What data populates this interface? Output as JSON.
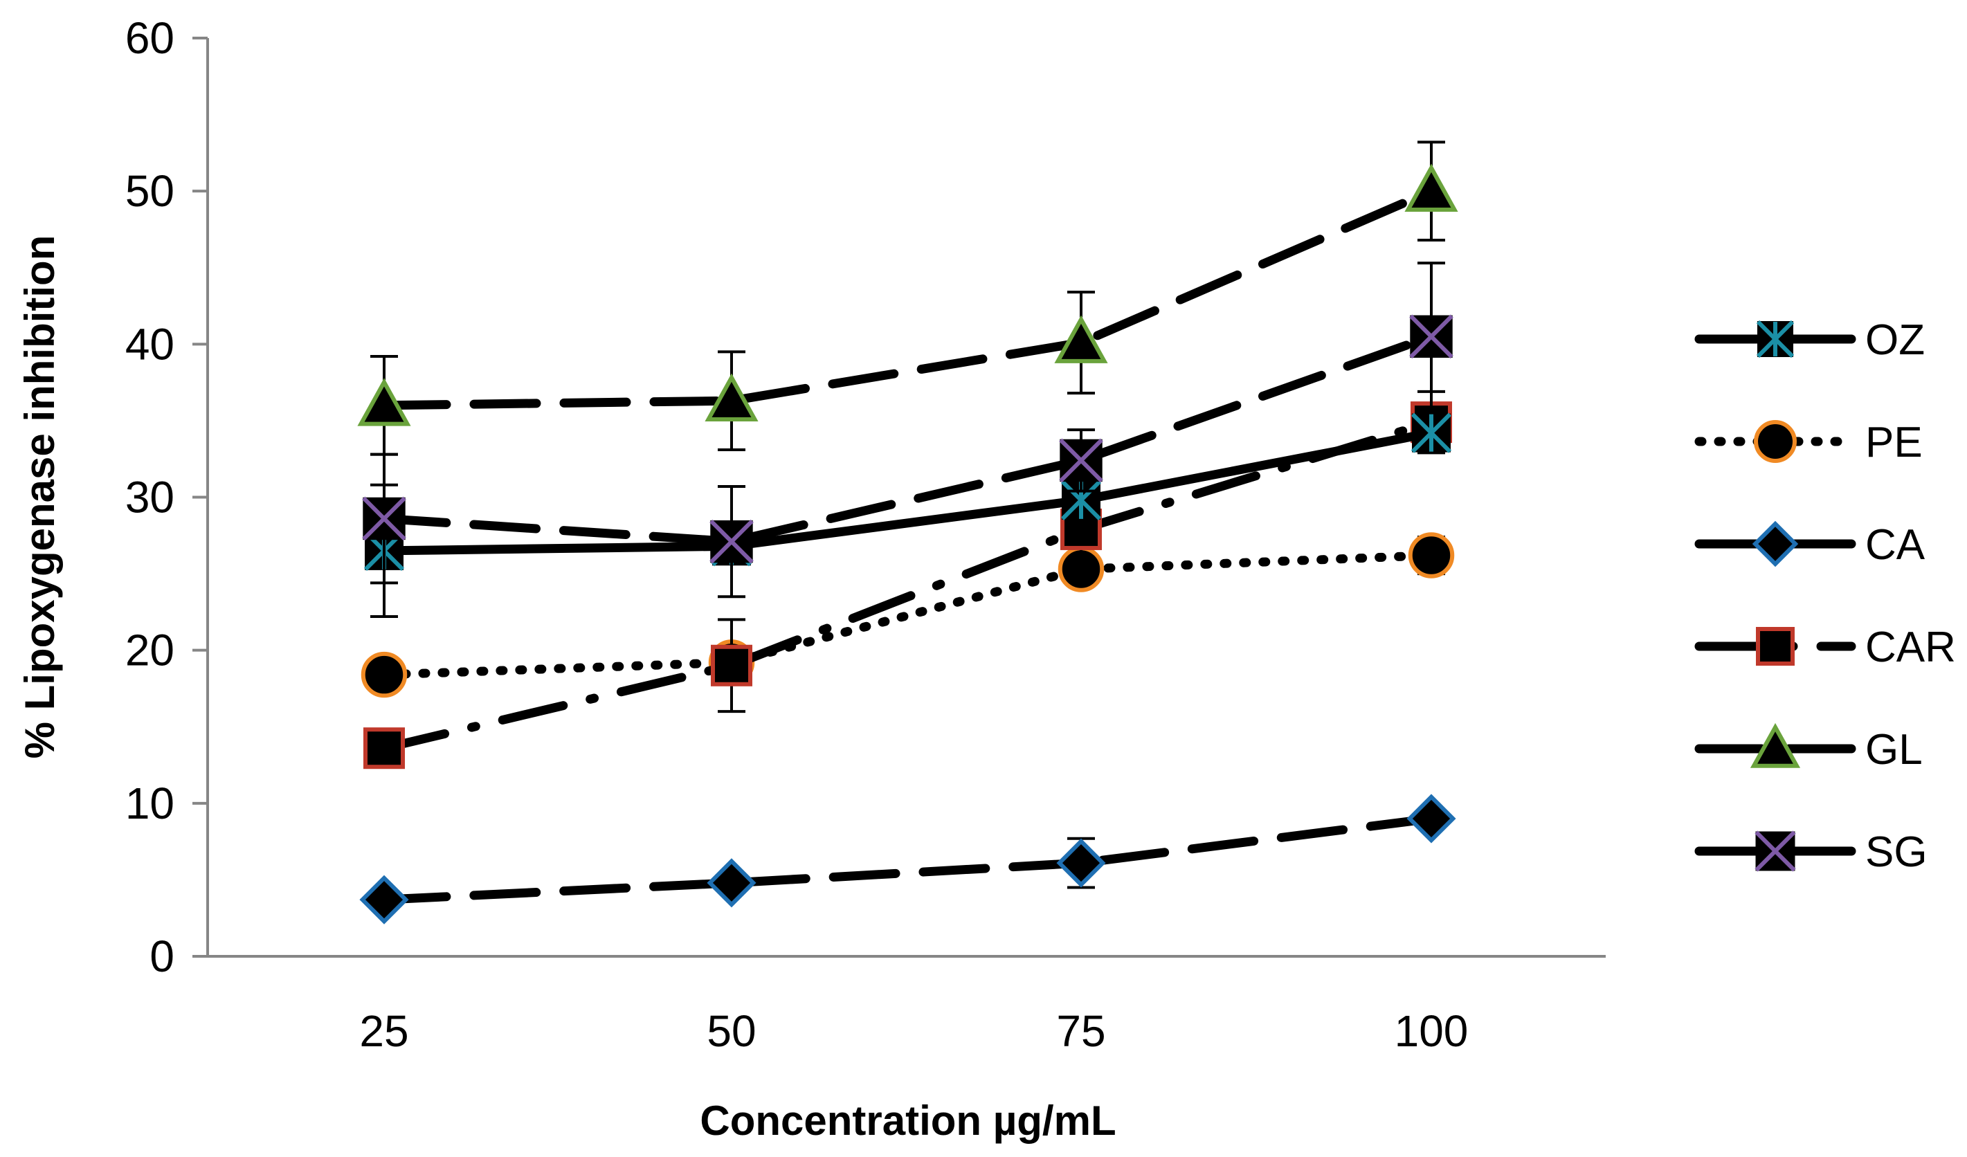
{
  "chart_data": {
    "type": "line",
    "title": "",
    "xlabel": "Concentration µg/mL",
    "ylabel": "% Lipoxygenase inhibition",
    "categories": [
      "25",
      "50",
      "75",
      "100"
    ],
    "ylim": [
      0,
      60
    ],
    "yticks": [
      0,
      10,
      20,
      30,
      40,
      50,
      60
    ],
    "grid": false,
    "legend_position": "right",
    "series": [
      {
        "name": "OZ",
        "values": [
          26.5,
          26.8,
          29.8,
          34.2
        ],
        "errors": [
          4.3,
          0,
          0,
          0.8
        ],
        "marker": "asterisk-square",
        "line": "solid",
        "marker_color": "#1b8fa6",
        "marker_fill": "#000000"
      },
      {
        "name": "PE",
        "values": [
          18.4,
          19.2,
          25.3,
          26.2
        ],
        "errors": [
          1.0,
          0,
          0,
          1.2
        ],
        "marker": "circle",
        "line": "dotted",
        "marker_color": "#f08a24",
        "marker_fill": "#000000"
      },
      {
        "name": "CA",
        "values": [
          3.7,
          4.8,
          6.1,
          9.0
        ],
        "errors": [
          0,
          0,
          1.6,
          0
        ],
        "marker": "diamond",
        "line": "dashed",
        "marker_color": "#1f6fb2",
        "marker_fill": "#000000"
      },
      {
        "name": "CAR",
        "values": [
          13.6,
          19.0,
          27.9,
          34.9
        ],
        "errors": [
          0,
          3.0,
          2.8,
          2.0
        ],
        "marker": "square",
        "line": "dash-dot",
        "marker_color": "#c0392b",
        "marker_fill": "#000000"
      },
      {
        "name": "GL",
        "values": [
          36.0,
          36.3,
          40.1,
          50.0
        ],
        "errors": [
          3.2,
          3.2,
          3.3,
          3.2
        ],
        "marker": "triangle",
        "line": "dashed",
        "marker_color": "#6aa33c",
        "marker_fill": "#000000"
      },
      {
        "name": "SG",
        "values": [
          28.6,
          27.1,
          32.4,
          40.5
        ],
        "errors": [
          4.2,
          3.6,
          2.0,
          4.8
        ],
        "marker": "x-square",
        "line": "dashed",
        "marker_color": "#7e5aa6",
        "marker_fill": "#000000"
      }
    ]
  }
}
